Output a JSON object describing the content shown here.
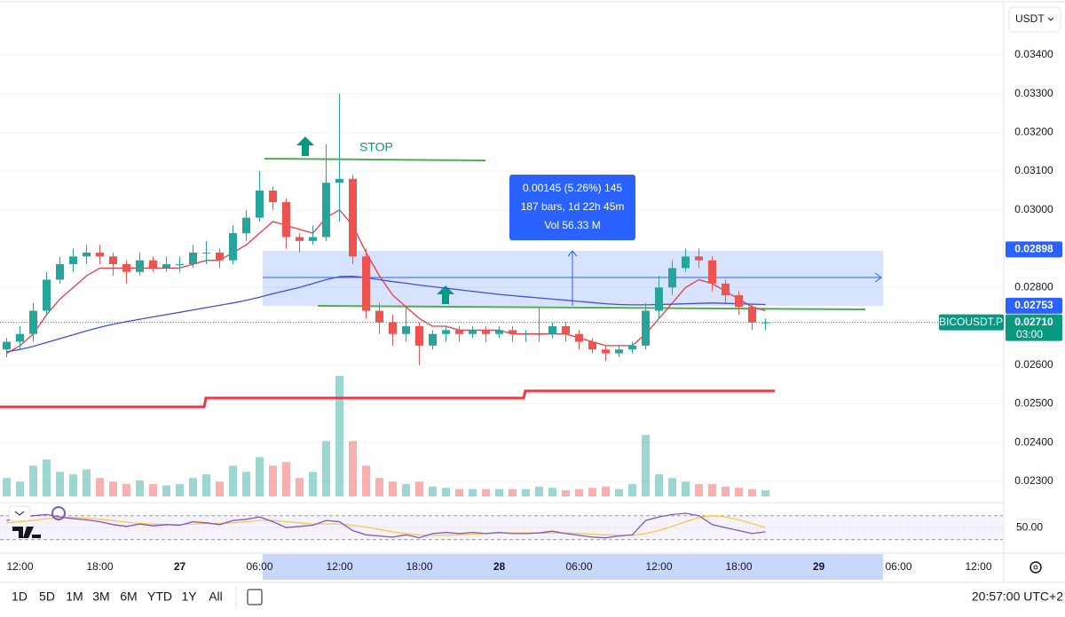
{
  "chart_data": {
    "type": "candlestick",
    "symbol": "BICOUSDT.P",
    "currency": "USDT",
    "categories": [
      null,
      "12:00",
      null,
      null,
      null,
      null,
      null,
      "18:00",
      null,
      null,
      null,
      null,
      null,
      "27",
      null,
      null,
      null,
      null,
      null,
      "06:00",
      null,
      null,
      null,
      null,
      null,
      "12:00",
      null,
      null,
      null,
      null,
      null,
      "18:00",
      null,
      null,
      null,
      null,
      null,
      "28",
      null,
      null,
      null,
      null,
      null,
      "06:00",
      null,
      null,
      null,
      null,
      null,
      "12:00",
      null,
      null,
      null,
      null,
      null,
      "18:00",
      null,
      null,
      null,
      null,
      null,
      "29",
      null,
      null,
      null,
      null,
      null,
      "06:00",
      null,
      null,
      null,
      null,
      null,
      "12:00"
    ],
    "open": [
      0.0264,
      0.0266,
      0.0268,
      0.0274,
      0.0282,
      0.0286,
      0.0288,
      0.0289,
      0.0288,
      0.0286,
      0.0284,
      0.0287,
      0.0285,
      0.0286,
      0.0286,
      0.0289,
      0.0289,
      0.0287,
      0.0294,
      0.0298,
      0.0305,
      0.0302,
      0.0293,
      0.0292,
      0.0293,
      0.0307,
      0.0308,
      0.0288,
      0.0274,
      0.0271,
      0.0268,
      0.027,
      0.0265,
      0.0268,
      0.0269,
      0.0268,
      0.0269,
      0.0268,
      0.0269,
      0.0268,
      0.0268,
      0.0268,
      0.027,
      0.0268,
      0.0266,
      0.0264,
      0.0263,
      0.0264,
      0.0265,
      0.0274,
      0.028,
      0.0285,
      0.0288,
      0.0287,
      0.0281,
      0.0278,
      0.0275,
      0.0271,
      null,
      null,
      null,
      null,
      null,
      null,
      null,
      null,
      null,
      null,
      null,
      null,
      null,
      null,
      null,
      null
    ],
    "high": [
      0.0267,
      0.027,
      0.0276,
      0.0284,
      0.0288,
      0.029,
      0.0291,
      0.0291,
      0.0289,
      0.0287,
      0.0289,
      0.0288,
      0.0288,
      0.0288,
      0.0291,
      0.0292,
      0.029,
      0.0296,
      0.03,
      0.031,
      0.0306,
      0.0303,
      0.0294,
      0.0296,
      0.0317,
      0.033,
      0.0309,
      0.029,
      0.0276,
      0.0273,
      0.0275,
      0.0271,
      0.0269,
      0.027,
      0.027,
      0.027,
      0.027,
      0.027,
      0.027,
      0.0269,
      0.0275,
      0.0271,
      0.0271,
      0.0269,
      0.0267,
      0.0265,
      0.0265,
      0.0266,
      0.0276,
      0.0283,
      0.0287,
      0.029,
      0.029,
      0.0288,
      0.0282,
      0.0279,
      0.0276,
      0.0272,
      null,
      null,
      null,
      null,
      null,
      null,
      null,
      null,
      null,
      null,
      null,
      null,
      null,
      null,
      null,
      null
    ],
    "low": [
      0.0262,
      0.0264,
      0.0266,
      0.0273,
      0.0281,
      0.0284,
      0.0286,
      0.0286,
      0.0283,
      0.0281,
      0.0283,
      0.0284,
      0.0284,
      0.0284,
      0.0285,
      0.0286,
      0.0285,
      0.0286,
      0.0292,
      0.0297,
      0.03,
      0.029,
      0.0289,
      0.0291,
      0.0292,
      0.0297,
      0.0286,
      0.0272,
      0.0268,
      0.0265,
      0.0266,
      0.026,
      0.0264,
      0.0266,
      0.0266,
      0.0267,
      0.0266,
      0.0267,
      0.0266,
      0.0266,
      0.0266,
      0.0267,
      0.0266,
      0.0264,
      0.0263,
      0.0261,
      0.0262,
      0.0263,
      0.0264,
      0.0272,
      0.0278,
      0.0284,
      0.0285,
      0.0279,
      0.0276,
      0.0273,
      0.0269,
      0.0269,
      null,
      null,
      null,
      null,
      null,
      null,
      null,
      null,
      null,
      null,
      null,
      null,
      null,
      null,
      null,
      null
    ],
    "close": [
      0.0266,
      0.0268,
      0.0274,
      0.0282,
      0.0286,
      0.0288,
      0.0289,
      0.0288,
      0.0286,
      0.0284,
      0.0287,
      0.0285,
      0.0286,
      0.0286,
      0.0289,
      0.0289,
      0.0287,
      0.0294,
      0.0298,
      0.0305,
      0.0302,
      0.0293,
      0.0292,
      0.0293,
      0.0307,
      0.0308,
      0.0288,
      0.0274,
      0.0271,
      0.0268,
      0.027,
      0.0265,
      0.0268,
      0.0269,
      0.0268,
      0.0269,
      0.0268,
      0.0269,
      0.0268,
      0.0268,
      0.0268,
      0.027,
      0.0268,
      0.0266,
      0.0264,
      0.0263,
      0.0264,
      0.0265,
      0.0274,
      0.028,
      0.0285,
      0.0288,
      0.0287,
      0.0281,
      0.0278,
      0.0275,
      0.0271,
      0.0271,
      null,
      null,
      null,
      null,
      null,
      null,
      null,
      null,
      null,
      null,
      null,
      null,
      null,
      null,
      null,
      null
    ],
    "up_color": "#26a69a",
    "down_color": "#ef5350",
    "ylim": [
      0.02261,
      0.0353
    ],
    "yticks": [
      {
        "value": 0.034,
        "label": "0.03400"
      },
      {
        "value": 0.033,
        "label": "0.03300"
      },
      {
        "value": 0.032,
        "label": "0.03200"
      },
      {
        "value": 0.031,
        "label": "0.03100"
      },
      {
        "value": 0.03,
        "label": "0.03000"
      },
      {
        "value": 0.028,
        "label": "0.02800"
      },
      {
        "value": 0.026,
        "label": "0.02600"
      },
      {
        "value": 0.025,
        "label": "0.02500"
      },
      {
        "value": 0.024,
        "label": "0.02400"
      },
      {
        "value": 0.023,
        "label": "0.02300"
      }
    ],
    "lines": [
      {
        "color": "#f23645",
        "values": [
          0.0263,
          0.0265,
          0.0268,
          0.0273,
          0.0277,
          0.028,
          0.0283,
          0.0285,
          0.0285,
          0.0285,
          0.0285,
          0.0285,
          0.0285,
          0.0285,
          0.0286,
          0.0287,
          0.0287,
          0.0289,
          0.0291,
          0.0294,
          0.0297,
          0.0296,
          0.0295,
          0.0294,
          0.0298,
          0.03,
          0.0296,
          0.0289,
          0.0283,
          0.0278,
          0.0275,
          0.0272,
          0.027,
          0.027,
          0.0269,
          0.0269,
          0.0269,
          0.0269,
          0.0268,
          0.0268,
          0.0268,
          0.0268,
          0.0268,
          0.0267,
          0.0266,
          0.0265,
          0.0265,
          0.0265,
          0.0268,
          0.0272,
          0.0276,
          0.028,
          0.0282,
          0.0281,
          0.0279,
          0.0277,
          0.0275,
          0.0274,
          null,
          null,
          null,
          null,
          null,
          null,
          null,
          null,
          null,
          null,
          null,
          null,
          null,
          null,
          null,
          null
        ]
      },
      {
        "color": "#3f4fd8",
        "values": [
          0.02634,
          0.0264,
          0.02648,
          0.02658,
          0.02668,
          0.02678,
          0.02688,
          0.02697,
          0.02705,
          0.02712,
          0.02718,
          0.02724,
          0.0273,
          0.02736,
          0.02742,
          0.02748,
          0.02754,
          0.0276,
          0.02767,
          0.02775,
          0.02784,
          0.02792,
          0.028,
          0.0281,
          0.0282,
          0.02828,
          0.02829,
          0.02825,
          0.0282,
          0.02815,
          0.02811,
          0.02806,
          0.02802,
          0.02798,
          0.02794,
          0.0279,
          0.02786,
          0.02782,
          0.02779,
          0.02776,
          0.02773,
          0.0277,
          0.02767,
          0.02764,
          0.02761,
          0.02758,
          0.02756,
          0.02755,
          0.02755,
          0.02756,
          0.02757,
          0.02758,
          0.02759,
          0.0276,
          0.02759,
          0.02758,
          0.02757,
          0.02756,
          null,
          null,
          null,
          null,
          null,
          null,
          null,
          null,
          null,
          null,
          null,
          null,
          null,
          null,
          null,
          null
        ]
      }
    ],
    "levels": [
      {
        "value": 0.02898,
        "color": "#2962ff"
      },
      {
        "value": 0.02753,
        "color": "#2962ff"
      }
    ],
    "last": {
      "value": 0.0271,
      "label": "0.02710",
      "countdown": "03:00",
      "color": "#089981"
    },
    "volume": {
      "ylim": [
        0,
        40
      ],
      "values": [
        1.5,
        1.2,
        2.5,
        3,
        2,
        1.8,
        2.2,
        1.5,
        1.2,
        1,
        1.3,
        1,
        0.9,
        1,
        1.5,
        1.8,
        1.2,
        2.5,
        2,
        3.2,
        2.5,
        2.8,
        1.5,
        2,
        4.5,
        9.8,
        4.5,
        2.5,
        1.5,
        1.2,
        1,
        1.2,
        0.8,
        0.7,
        0.6,
        0.6,
        0.6,
        0.6,
        0.6,
        0.6,
        0.8,
        0.7,
        0.5,
        0.6,
        0.7,
        0.8,
        0.6,
        1,
        5,
        1.8,
        1.5,
        1.2,
        1,
        1,
        0.8,
        0.7,
        0.6,
        0.5,
        null,
        null,
        null,
        null,
        null,
        null,
        null,
        null,
        null,
        null,
        null,
        null,
        null,
        null,
        null,
        null
      ]
    },
    "rsi": {
      "ylim": [
        25,
        80
      ],
      "bands": [
        30,
        70
      ],
      "yticks": [
        {
          "value": 50,
          "label": "50.00"
        }
      ],
      "color": "#7e57c2",
      "ma_color": "#f7c948",
      "values": [
        62,
        66,
        70,
        72,
        68,
        65,
        63,
        60,
        55,
        52,
        56,
        53,
        55,
        54,
        60,
        58,
        55,
        62,
        64,
        68,
        60,
        50,
        52,
        54,
        62,
        60,
        45,
        38,
        36,
        34,
        38,
        33,
        40,
        42,
        40,
        42,
        40,
        42,
        40,
        40,
        41,
        44,
        40,
        37,
        34,
        33,
        36,
        38,
        62,
        68,
        72,
        74,
        70,
        55,
        50,
        45,
        40,
        43,
        null,
        null,
        null,
        null,
        null,
        null,
        null,
        null,
        null,
        null,
        null,
        null,
        null,
        null,
        null,
        null
      ],
      "ma_values": [
        58,
        60,
        62,
        65,
        67,
        67,
        66,
        64,
        62,
        59,
        57,
        56,
        55,
        55,
        56,
        57,
        57,
        58,
        60,
        62,
        62,
        60,
        58,
        56,
        56,
        56,
        54,
        51,
        47,
        43,
        40,
        38,
        37,
        37,
        38,
        39,
        40,
        41,
        41,
        41,
        41,
        41,
        41,
        40,
        39,
        38,
        37,
        37,
        40,
        45,
        52,
        60,
        67,
        70,
        68,
        63,
        57,
        50,
        null,
        null,
        null,
        null,
        null,
        null,
        null,
        null,
        null,
        null,
        null,
        null,
        null,
        null,
        null,
        null
      ]
    },
    "annotations": {
      "stop": "STOP",
      "measure": [
        "0.00145 (5.26%) 145",
        "187 bars, 1d 22h 45m",
        "Vol 56.33 M"
      ]
    }
  },
  "toolbar": {
    "ranges": [
      "1D",
      "5D",
      "1M",
      "3M",
      "6M",
      "YTD",
      "1Y",
      "All"
    ],
    "clock": "20:57:00 UTC+2"
  }
}
